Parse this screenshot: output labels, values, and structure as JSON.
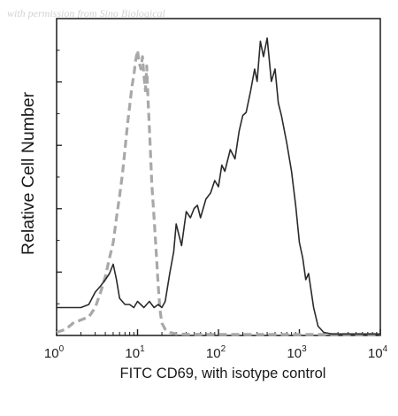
{
  "watermark": "with permission from Sino Biological",
  "chart_data": {
    "type": "line",
    "title": "",
    "xlabel": "FITC CD69, with isotype control",
    "ylabel": "Relative Cell Number",
    "x_scale": "log",
    "xlim": [
      1,
      10000
    ],
    "ylim": [
      0,
      100
    ],
    "grid": false,
    "legend": "none",
    "x_ticks": [
      {
        "value": 1,
        "base": "10",
        "exp": "0"
      },
      {
        "value": 10,
        "base": "10",
        "exp": "1"
      },
      {
        "value": 100,
        "base": "10",
        "exp": "2"
      },
      {
        "value": 1000,
        "base": "10",
        "exp": "3"
      },
      {
        "value": 10000,
        "base": "10",
        "exp": "4"
      }
    ],
    "series": [
      {
        "color": "#a8a8a8",
        "style": "dashed",
        "x": [
          1,
          1.3,
          1.6,
          2,
          2.5,
          3,
          3.5,
          4,
          4.5,
          5,
          5.5,
          6,
          6.5,
          7,
          7.5,
          8,
          8.5,
          9,
          9.5,
          10,
          10.5,
          11,
          11.5,
          12,
          12.5,
          13,
          13.5,
          14,
          14.5,
          15,
          16,
          17,
          18,
          19,
          20,
          22,
          25,
          30,
          40,
          60,
          100,
          200,
          500,
          1000,
          3000,
          10000
        ],
        "values": [
          1,
          2,
          4,
          5,
          6,
          9,
          14,
          19,
          25,
          30,
          38,
          45,
          52,
          60,
          68,
          74,
          80,
          84,
          89,
          92,
          88,
          86,
          90,
          84,
          79,
          87,
          76,
          67,
          58,
          49,
          38,
          27,
          16,
          8,
          4,
          2,
          1,
          0.5,
          0.4,
          0.3,
          0.3,
          0.3,
          0.3,
          0.3,
          0.3,
          0.3
        ]
      },
      {
        "color": "#2a2a2a",
        "style": "solid",
        "x": [
          1,
          1.5,
          2,
          2.5,
          3,
          3.5,
          4,
          4.5,
          5,
          5.5,
          6,
          7,
          8,
          9,
          10,
          12,
          14,
          16,
          18,
          20,
          22,
          25,
          28,
          30,
          35,
          40,
          45,
          50,
          55,
          60,
          70,
          80,
          90,
          100,
          110,
          120,
          140,
          160,
          180,
          200,
          220,
          250,
          280,
          300,
          330,
          360,
          400,
          450,
          500,
          550,
          600,
          700,
          800,
          900,
          1000,
          1100,
          1200,
          1300,
          1500,
          1700,
          2000,
          2500,
          3000,
          5000,
          10000
        ],
        "values": [
          9,
          9,
          9,
          10,
          14,
          16,
          18,
          20,
          23,
          18,
          12,
          10,
          10,
          9,
          11,
          9,
          11,
          9,
          10,
          9,
          11,
          20,
          27,
          36,
          29,
          40,
          38,
          41,
          42,
          38,
          44,
          46,
          50,
          48,
          55,
          53,
          60,
          57,
          66,
          71,
          72,
          79,
          86,
          82,
          95,
          90,
          96,
          82,
          86,
          75,
          71,
          62,
          53,
          42,
          30,
          25,
          18,
          20,
          9,
          3,
          1,
          0.5,
          0.5,
          0.5,
          0.5
        ]
      }
    ]
  }
}
